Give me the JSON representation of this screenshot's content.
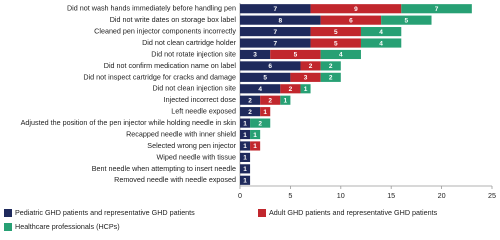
{
  "chart_data": {
    "type": "stacked-bar-horizontal",
    "categories": [
      "Did not wash hands immediately before handling pen",
      "Did not write dates on storage box label",
      "Cleaned pen injector components incorrectly",
      "Did not clean cartridge holder",
      "Did not rotate injection site",
      "Did not confirm medication name on label",
      "Did not inspect cartridge for cracks and damage",
      "Did not clean injection site",
      "Injected incorrect dose",
      "Left needle exposed",
      "Adjusted the position of the pen injector while holding needle in skin",
      "Recapped needle with inner shield",
      "Selected wrong pen injector",
      "Wiped needle with tissue",
      "Bent needle when attempting to insert needle",
      "Removed needle with needle exposed"
    ],
    "series": [
      {
        "name": "Pediatric GHD patients and representative GHD patients",
        "color": "#1f2a5c",
        "values": [
          7,
          8,
          7,
          7,
          3,
          6,
          5,
          4,
          2,
          2,
          1,
          1,
          1,
          1,
          1,
          1
        ]
      },
      {
        "name": "Adult GHD patients and representative GHD patients",
        "color": "#c1272d",
        "values": [
          9,
          6,
          5,
          5,
          5,
          2,
          3,
          2,
          2,
          1,
          null,
          null,
          1,
          null,
          null,
          null
        ]
      },
      {
        "name": "Healthcare professionals (HCPs)",
        "color": "#27a074",
        "values": [
          7,
          5,
          4,
          4,
          4,
          2,
          2,
          1,
          1,
          null,
          2,
          1,
          null,
          null,
          null,
          null
        ]
      }
    ],
    "xlim": [
      0,
      25
    ],
    "xticks": [
      0,
      5,
      10,
      15,
      20,
      25
    ]
  }
}
